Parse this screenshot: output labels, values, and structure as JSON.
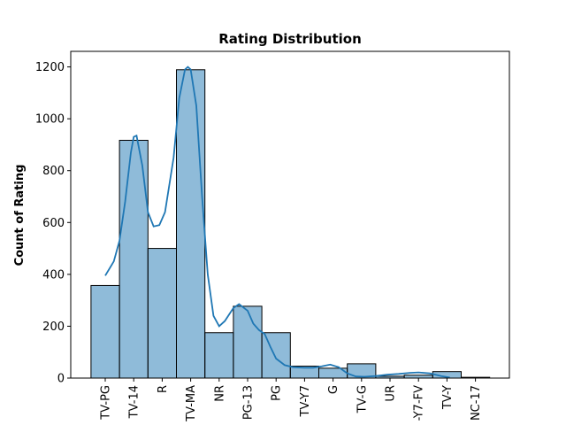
{
  "chart_data": {
    "type": "bar",
    "title": "Rating Distribution",
    "xlabel": "",
    "ylabel": "Count of Rating",
    "categories": [
      "TV-PG",
      "TV-14",
      "R",
      "TV-MA",
      "NR",
      "PG-13",
      "PG",
      "TV-Y7",
      "G",
      "TV-G",
      "UR",
      "-Y7-FV",
      "TV-Y",
      "NC-17"
    ],
    "values": [
      357,
      917,
      500,
      1189,
      175,
      277,
      175,
      46,
      38,
      55,
      7,
      11,
      25,
      3
    ],
    "kde": [
      [
        0.0,
        395
      ],
      [
        0.3,
        450
      ],
      [
        0.5,
        530
      ],
      [
        0.7,
        680
      ],
      [
        0.9,
        870
      ],
      [
        1.0,
        930
      ],
      [
        1.1,
        935
      ],
      [
        1.3,
        820
      ],
      [
        1.5,
        640
      ],
      [
        1.7,
        585
      ],
      [
        1.9,
        590
      ],
      [
        2.1,
        640
      ],
      [
        2.4,
        850
      ],
      [
        2.6,
        1080
      ],
      [
        2.8,
        1190
      ],
      [
        2.9,
        1200
      ],
      [
        3.0,
        1190
      ],
      [
        3.2,
        1050
      ],
      [
        3.4,
        700
      ],
      [
        3.6,
        400
      ],
      [
        3.8,
        240
      ],
      [
        4.0,
        200
      ],
      [
        4.2,
        220
      ],
      [
        4.5,
        270
      ],
      [
        4.7,
        285
      ],
      [
        5.0,
        260
      ],
      [
        5.2,
        210
      ],
      [
        5.4,
        185
      ],
      [
        5.6,
        170
      ],
      [
        5.8,
        120
      ],
      [
        6.0,
        75
      ],
      [
        6.3,
        50
      ],
      [
        6.6,
        42
      ],
      [
        7.0,
        40
      ],
      [
        7.3,
        40
      ],
      [
        7.6,
        45
      ],
      [
        7.9,
        52
      ],
      [
        8.2,
        42
      ],
      [
        8.5,
        18
      ],
      [
        8.8,
        6
      ],
      [
        9.1,
        5
      ],
      [
        9.5,
        8
      ],
      [
        9.9,
        13
      ],
      [
        10.3,
        16
      ],
      [
        10.7,
        20
      ],
      [
        11.0,
        22
      ],
      [
        11.4,
        18
      ],
      [
        11.8,
        8
      ],
      [
        12.1,
        2
      ]
    ],
    "ylim": [
      0,
      1260
    ],
    "yticks": [
      0,
      200,
      400,
      600,
      800,
      1000,
      1200
    ],
    "bar_color": "#1f77b4",
    "line_color": "#1f77b4",
    "grid": false,
    "legend": "none"
  }
}
